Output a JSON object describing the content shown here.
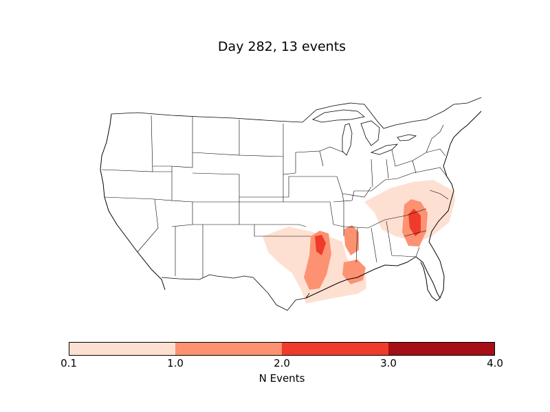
{
  "title": "Day 282, 13 events",
  "colorbar": {
    "label": "N Events",
    "ticks": [
      "0.1",
      "1.0",
      "2.0",
      "3.0",
      "4.0"
    ],
    "bins": [
      {
        "range": "0.1-1.0",
        "color": "#fee0d2"
      },
      {
        "range": "1.0-2.0",
        "color": "#fc9272"
      },
      {
        "range": "2.0-3.0",
        "color": "#ef3b2c"
      },
      {
        "range": "3.0-4.0",
        "color": "#a50f15"
      }
    ]
  },
  "map": {
    "region": "Continental United States",
    "basemap": "state and national boundaries, coastlines, lakes"
  },
  "event_regions": [
    {
      "name": "southern-plains-to-louisiana",
      "level": "0.1-1.0"
    },
    {
      "name": "east-texas-louisiana",
      "level": "1.0-2.0"
    },
    {
      "name": "east-texas-core",
      "level": "2.0-3.0"
    },
    {
      "name": "mississippi-corridor",
      "level": "1.0-2.0"
    },
    {
      "name": "tennessee-carolinas",
      "level": "0.1-1.0"
    },
    {
      "name": "south-carolina",
      "level": "1.0-2.0"
    },
    {
      "name": "south-carolina-core",
      "level": "2.0-3.0"
    }
  ]
}
